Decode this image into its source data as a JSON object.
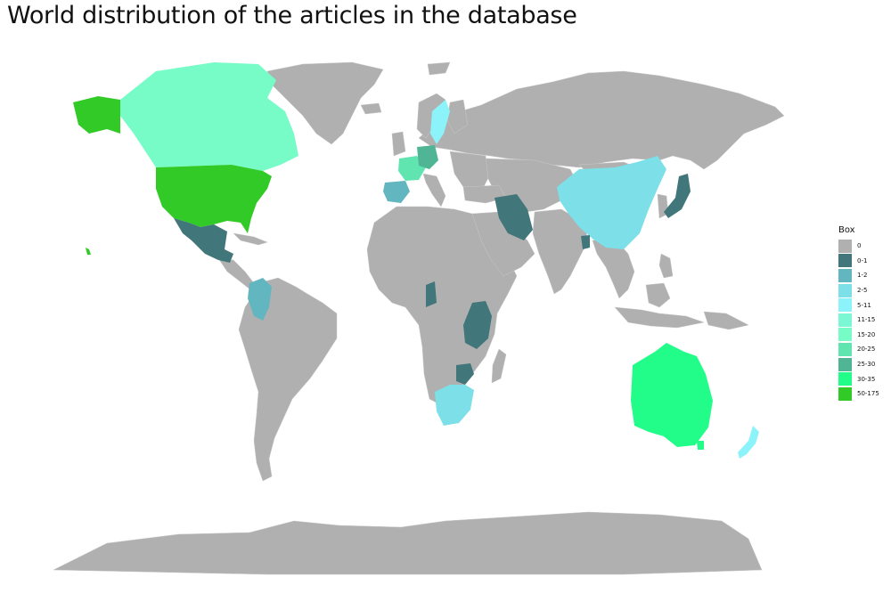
{
  "title": "World distribution of the articles in the database",
  "legend": {
    "title": "Box",
    "items": [
      {
        "label": "0",
        "color": "#b0b0b0"
      },
      {
        "label": "0-1",
        "color": "#41767a"
      },
      {
        "label": "1-2",
        "color": "#62b6c0"
      },
      {
        "label": "2-5",
        "color": "#7ddfe8"
      },
      {
        "label": "5-11",
        "color": "#8cf3fb"
      },
      {
        "label": "11-15",
        "color": "#7cf7d4"
      },
      {
        "label": "15-20",
        "color": "#78fcc7"
      },
      {
        "label": "20-25",
        "color": "#60e5b0"
      },
      {
        "label": "25-30",
        "color": "#4fb595"
      },
      {
        "label": "30-35",
        "color": "#22fd8a"
      },
      {
        "label": "50-175",
        "color": "#32ca26"
      }
    ]
  },
  "countries": [
    {
      "name": "United States",
      "category": "50-175"
    },
    {
      "name": "Canada",
      "category": "15-20"
    },
    {
      "name": "Mexico",
      "category": "0-1"
    },
    {
      "name": "Colombia",
      "category": "1-2"
    },
    {
      "name": "Spain",
      "category": "1-2"
    },
    {
      "name": "China",
      "category": "2-5"
    },
    {
      "name": "Japan",
      "category": "0-1"
    },
    {
      "name": "Iran",
      "category": "0-1"
    },
    {
      "name": "Bangladesh",
      "category": "0-1"
    },
    {
      "name": "Tanzania",
      "category": "0-1"
    },
    {
      "name": "Gabon",
      "category": "0-1"
    },
    {
      "name": "Zimbabwe",
      "category": "0-1"
    },
    {
      "name": "South Africa",
      "category": "2-5"
    },
    {
      "name": "Australia",
      "category": "30-35"
    },
    {
      "name": "New Zealand",
      "category": "5-11"
    },
    {
      "name": "Sweden",
      "category": "5-11"
    },
    {
      "name": "Germany",
      "category": "25-30"
    },
    {
      "name": "France",
      "category": "20-25"
    }
  ]
}
